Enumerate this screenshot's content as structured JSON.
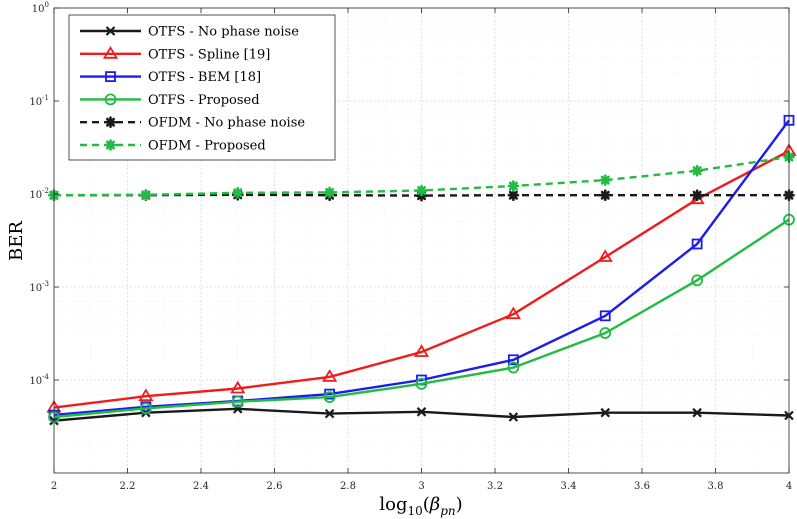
{
  "chart_data": {
    "type": "line",
    "title": "",
    "xlabel": "log10(β_pn)",
    "xlabel_main": "log",
    "xlabel_sub": "10",
    "xlabel_arg_open": "(",
    "xlabel_arg_symbol": "β",
    "xlabel_arg_sub": "pn",
    "xlabel_arg_close": ")",
    "ylabel": "BER",
    "xlim": [
      2,
      4
    ],
    "ylim": [
      1e-05,
      1
    ],
    "yscale": "log",
    "grid": true,
    "legend_position": "top-left",
    "x": [
      2,
      2.25,
      2.5,
      2.75,
      3,
      3.25,
      3.5,
      3.75,
      4
    ],
    "xticks": [
      2,
      2.2,
      2.4,
      2.6,
      2.8,
      3,
      3.2,
      3.4,
      3.6,
      3.8,
      4
    ],
    "xtick_labels": [
      "2",
      "2.2",
      "2.4",
      "2.6",
      "2.8",
      "3",
      "3.2",
      "3.4",
      "3.6",
      "3.8",
      "4"
    ],
    "yticks": [
      0.0001,
      0.001,
      0.01,
      0.1,
      1
    ],
    "ytick_labels": [
      {
        "base": "10",
        "exp": "-4"
      },
      {
        "base": "10",
        "exp": "-3"
      },
      {
        "base": "10",
        "exp": "-2"
      },
      {
        "base": "10",
        "exp": "-1"
      },
      {
        "base": "10",
        "exp": "0"
      }
    ],
    "series": [
      {
        "name": "OTFS - No phase noise",
        "color": "#1a1a1a",
        "marker": "x",
        "dashed": false,
        "values": [
          3.65e-05,
          4.45e-05,
          4.9e-05,
          4.35e-05,
          4.55e-05,
          4e-05,
          4.45e-05,
          4.45e-05,
          4.15e-05
        ]
      },
      {
        "name": "OTFS - Spline [19]",
        "color": "#ee1c1c",
        "marker": "triangle",
        "dashed": false,
        "values": [
          5.05e-05,
          6.7e-05,
          8.1e-05,
          0.000108,
          0.0002,
          0.00051,
          0.0021,
          0.0088,
          0.029
        ]
      },
      {
        "name": "OTFS - BEM [18]",
        "color": "#1c1cee",
        "marker": "square",
        "dashed": false,
        "values": [
          4.2e-05,
          5.15e-05,
          5.95e-05,
          7.05e-05,
          0.0001,
          0.000165,
          0.00049,
          0.0029,
          0.062
        ]
      },
      {
        "name": "OTFS - Proposed",
        "color": "#22bb44",
        "marker": "circle",
        "dashed": false,
        "values": [
          4e-05,
          4.95e-05,
          5.85e-05,
          6.55e-05,
          9.1e-05,
          0.000136,
          0.00032,
          0.00118,
          0.0053
        ]
      },
      {
        "name": "OFDM - No phase noise",
        "color": "#1a1a1a",
        "marker": "star",
        "dashed": true,
        "values": [
          0.0097,
          0.0097,
          0.0098,
          0.0097,
          0.0096,
          0.0097,
          0.0097,
          0.0097,
          0.0097
        ]
      },
      {
        "name": "OFDM - Proposed",
        "color": "#22bb44",
        "marker": "star",
        "dashed": true,
        "values": [
          0.0097,
          0.0098,
          0.0103,
          0.0104,
          0.0109,
          0.0122,
          0.0141,
          0.0178,
          0.025
        ]
      }
    ]
  }
}
